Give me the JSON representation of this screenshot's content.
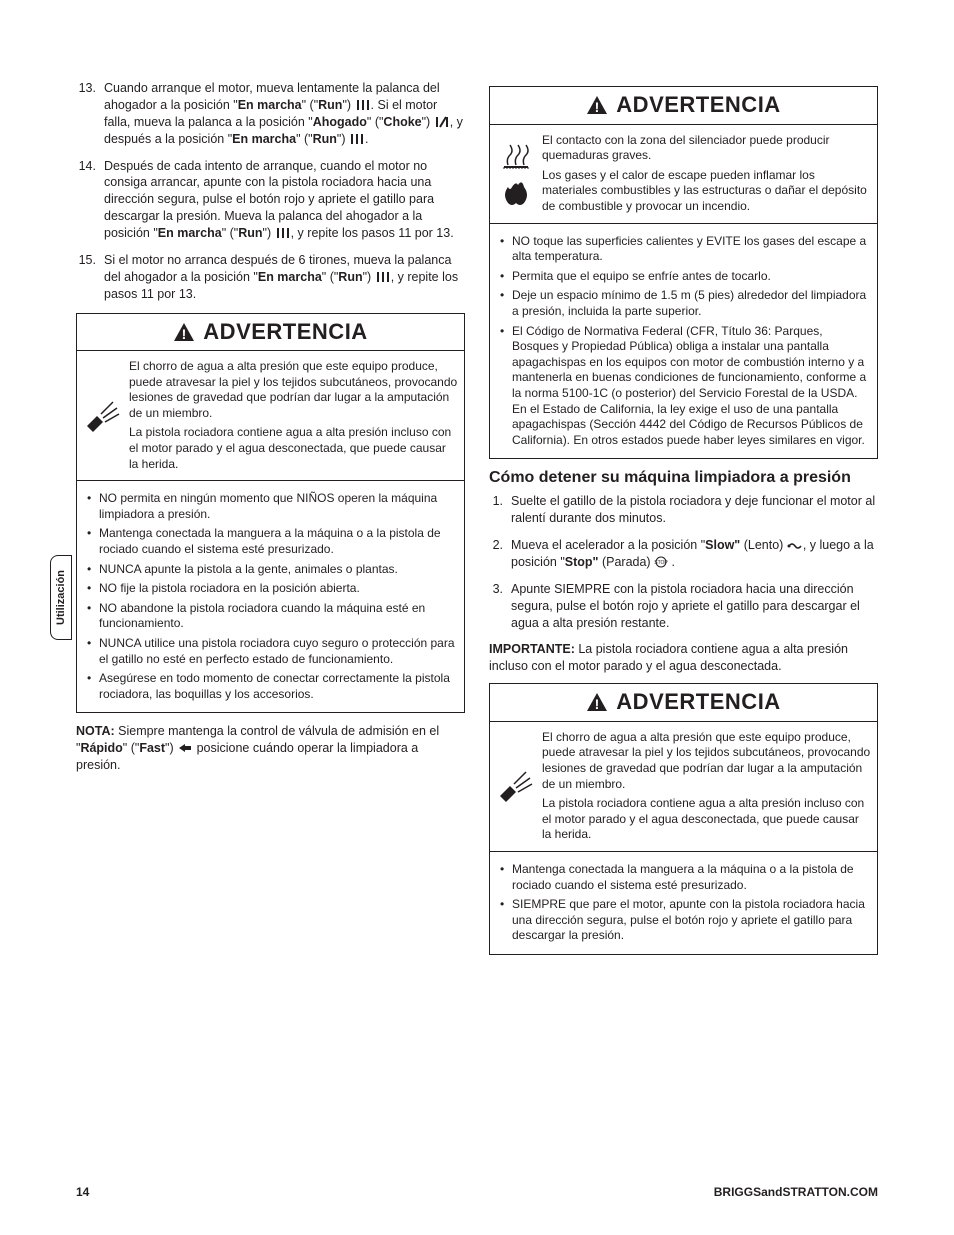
{
  "side_tab": "Utilización",
  "left": {
    "steps": [
      {
        "n": "13.",
        "html": "Cuando arranque el motor, mueva lentamente la palanca del ahogador a la posición \"<span class='b'>En marcha</span>\" (\"<span class='b'>Run</span>\") <svg class='glyph' width='16' height='12'><rect x='2' y='1' width='2' height='10' fill='#231f20'/><rect x='7' y='1' width='2' height='10' fill='#231f20'/><rect x='12' y='1' width='2' height='10' fill='#231f20'/></svg>. Si el motor falla, mueva la palanca a la posición \"<span class='b'>Ahogado</span>\" (\"<span class='b'>Choke</span>\") <svg class='glyph' width='16' height='12'><rect x='2' y='1' width='2' height='10' fill='#231f20'/><line x1='6' y1='11' x2='12' y2='1' stroke='#231f20' stroke-width='2'/><rect x='12' y='1' width='2' height='10' fill='#231f20'/></svg>, y después a la posición \"<span class='b'>En marcha</span>\" (\"<span class='b'>Run</span>\") <svg class='glyph' width='16' height='12'><rect x='2' y='1' width='2' height='10' fill='#231f20'/><rect x='7' y='1' width='2' height='10' fill='#231f20'/><rect x='12' y='1' width='2' height='10' fill='#231f20'/></svg>."
      },
      {
        "n": "14.",
        "html": "Después de cada intento de arranque, cuando el motor no consiga arrancar, apunte con la pistola rociadora hacia una dirección segura, pulse el botón rojo y apriete el gatillo para descargar la presión. Mueva la palanca del ahogador a la posición \"<span class='b'>En marcha</span>\" (\"<span class='b'>Run</span>\") <svg class='glyph' width='16' height='12'><rect x='2' y='1' width='2' height='10' fill='#231f20'/><rect x='7' y='1' width='2' height='10' fill='#231f20'/><rect x='12' y='1' width='2' height='10' fill='#231f20'/></svg>, y repite los pasos 11 por 13."
      },
      {
        "n": "15.",
        "html": "Si el motor no arranca después de 6 tirones, mueva la palanca del ahogador a la posición \"<span class='b'>En marcha</span>\" (\"<span class='b'>Run</span>\") <svg class='glyph' width='16' height='12'><rect x='2' y='1' width='2' height='10' fill='#231f20'/><rect x='7' y='1' width='2' height='10' fill='#231f20'/><rect x='12' y='1' width='2' height='10' fill='#231f20'/></svg>, y repite los pasos 11 por 13."
      }
    ],
    "warn": {
      "title": "ADVERTENCIA",
      "texts": [
        "El chorro de agua a alta presión que este equipo produce, puede atravesar la piel y los tejidos subcutáneos, provocando lesiones de gravedad que podrían dar lugar a la amputación de un miembro.",
        "La pistola rociadora contiene agua a alta presión incluso con el motor parado y el agua desconectada, que puede causar la herida."
      ],
      "bullets": [
        "NO permita en ningún momento que NIÑOS operen la máquina limpiadora a presión.",
        "Mantenga conectada la manguera a la máquina o a la pistola de rociado cuando el sistema esté presurizado.",
        "NUNCA apunte la pistola a la gente, animales o plantas.",
        "NO fije la pistola rociadora en la posición abierta.",
        "NO abandone la pistola rociadora cuando la máquina esté en funcionamiento.",
        "NUNCA utilice una pistola rociadora cuyo seguro o protección para el gatillo no esté en perfecto estado de funcionamiento.",
        "Asegúrese en todo momento de conectar correctamente la pistola rociadora, las boquillas y los accesorios."
      ]
    },
    "nota_html": "<span class='b'>NOTA:</span> Siempre mantenga la control de válvula de admisión en el \"<span class='b'>Rápido</span>\" (\"<span class='b'>Fast</span>\") <svg class='glyph' width='16' height='12'><path d='M2 6 L8 2 L8 4 L14 4 L14 8 L8 8 L8 10 Z' fill='#231f20'/></svg> posicione cuándo operar la limpiadora a presión."
  },
  "right": {
    "warn1": {
      "title": "ADVERTENCIA",
      "texts": [
        "El contacto con la zona del silenciador puede producir quemaduras graves.",
        "Los gases y el calor de escape pueden inflamar los materiales combustibles y las estructuras o dañar el depósito de combustible y provocar un incendio."
      ],
      "bullets": [
        "NO toque las superficies calientes y EVITE los gases del escape a alta temperatura.",
        "Permita que el equipo se enfríe antes de tocarlo.",
        "Deje un espacio mínimo de 1.5 m (5 pies) alrededor del limpiadora a presión, incluida la parte superior.",
        "El Código de Normativa Federal (CFR, Título 36: Parques, Bosques y Propiedad Pública) obliga a instalar una pantalla apagachispas en los equipos con motor de combustión interno y a mantenerla en buenas condiciones de funcionamiento, conforme a la norma 5100-1C (o posterior) del Servicio Forestal de la USDA. En el Estado de California, la ley exige el uso de una pantalla apagachispas (Sección 4442 del Código de Recursos Públicos de California). En otros estados puede haber leyes similares en vigor."
      ]
    },
    "section_title": "Cómo detener su máquina limpiadora a presión",
    "steps": [
      {
        "n": "1.",
        "html": "Suelte el gatillo de la pistola rociadora y deje funcionar el motor al ralentí durante dos minutos."
      },
      {
        "n": "2.",
        "html": "Mueva el acelerador a la posición \"<span class='b'>Slow\"</span> (Lento) <svg class='glyph' width='16' height='10'><path d='M2 5 Q5 1 8 5 Q11 9 14 5' fill='none' stroke='#231f20' stroke-width='1.5'/><circle cx='2' cy='5' r='1.5' fill='#231f20'/></svg>, y luego a la posición \"<span class='b'>Stop\"</span> (Parada) <svg class='glyph' width='14' height='12'><circle cx='7' cy='6' r='5' fill='none' stroke='#231f20' stroke-width='1'/><text x='7' y='8' font-size='5' text-anchor='middle' fill='#231f20'>STOP</text></svg> ."
      },
      {
        "n": "3.",
        "html": "Apunte SIEMPRE con la pistola rociadora hacia una dirección segura, pulse el botón rojo y apriete el gatillo para descargar el agua a alta presión restante."
      }
    ],
    "importante_html": "<span class='b'>IMPORTANTE:</span> La pistola rociadora contiene agua a alta presión incluso con el motor parado y el agua desconectada.",
    "warn2": {
      "title": "ADVERTENCIA",
      "texts": [
        "El chorro de agua a alta presión que este equipo produce, puede atravesar la piel y los tejidos subcutáneos, provocando lesiones de gravedad que podrían dar lugar a la amputación de un miembro.",
        "La pistola rociadora contiene agua a alta presión incluso con el motor parado y el agua desconectada, que puede causar la herida."
      ],
      "bullets": [
        "Mantenga conectada la manguera a la máquina o a la pistola de rociado cuando el sistema esté presurizado.",
        "SIEMPRE que pare el motor, apunte con la pistola rociadora hacia una dirección segura, pulse el botón rojo y apriete el gatillo para descargar la presión."
      ]
    }
  },
  "footer": {
    "page": "14",
    "site": "BRIGGSandSTRATTON.COM"
  },
  "icons": {
    "warning_triangle": "warning-triangle-icon",
    "spray": "spray-hazard-icon",
    "hot": "hot-surface-icon",
    "fire": "fire-hazard-icon"
  }
}
